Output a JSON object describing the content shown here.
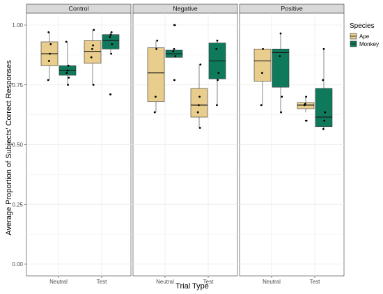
{
  "chart_data": {
    "type": "box",
    "facets": [
      "Control",
      "Negative",
      "Positive"
    ],
    "categories": [
      "Neutral",
      "Test"
    ],
    "xlabel": "Trial Type",
    "ylabel": "Average Proportion of Subjects' Correct Responses",
    "ylim": [
      0,
      1.05
    ],
    "yticks": [
      "0.00",
      "0.25",
      "0.50",
      "0.75",
      "1.00"
    ],
    "ytick_values": [
      0,
      0.25,
      0.5,
      0.75,
      1.0
    ],
    "legend": {
      "title": "Species",
      "position": "right"
    },
    "grid": true,
    "series": [
      {
        "name": "Ape",
        "color": "#e8cd8d"
      },
      {
        "name": "Monkey",
        "color": "#0f7a5b"
      }
    ],
    "boxes": [
      {
        "facet": "Control",
        "category": "Neutral",
        "series": "Ape",
        "q1": 0.83,
        "median": 0.88,
        "q3": 0.93,
        "whisker_low": 0.77,
        "whisker_high": 0.97,
        "points": [
          0.77,
          0.85,
          0.88,
          0.92,
          0.97
        ]
      },
      {
        "facet": "Control",
        "category": "Neutral",
        "series": "Monkey",
        "q1": 0.79,
        "median": 0.81,
        "q3": 0.83,
        "whisker_low": 0.75,
        "whisker_high": 0.93,
        "points": [
          0.75,
          0.78,
          0.8,
          0.81,
          0.83,
          0.93
        ]
      },
      {
        "facet": "Control",
        "category": "Test",
        "series": "Ape",
        "q1": 0.84,
        "median": 0.89,
        "q3": 0.935,
        "whisker_low": 0.75,
        "whisker_high": 0.98,
        "points": [
          0.75,
          0.865,
          0.9,
          0.915,
          0.98
        ]
      },
      {
        "facet": "Control",
        "category": "Test",
        "series": "Monkey",
        "q1": 0.9,
        "median": 0.935,
        "q3": 0.96,
        "whisker_low": 0.88,
        "whisker_high": 0.97,
        "outliers": [
          0.71
        ],
        "points": [
          0.71,
          0.88,
          0.92,
          0.95,
          0.96,
          0.97
        ]
      },
      {
        "facet": "Negative",
        "category": "Neutral",
        "series": "Ape",
        "q1": 0.68,
        "median": 0.8,
        "q3": 0.905,
        "whisker_low": 0.635,
        "whisker_high": 0.935,
        "points": [
          0.635,
          0.7,
          0.9,
          0.935
        ]
      },
      {
        "facet": "Negative",
        "category": "Neutral",
        "series": "Monkey",
        "q1": 0.865,
        "median": 0.88,
        "q3": 0.895,
        "whisker_low": 0.865,
        "whisker_high": 0.895,
        "outliers": [
          0.77,
          1.0
        ],
        "points": [
          0.77,
          0.87,
          0.89,
          0.9,
          1.0
        ]
      },
      {
        "facet": "Negative",
        "category": "Test",
        "series": "Ape",
        "q1": 0.615,
        "median": 0.665,
        "q3": 0.735,
        "whisker_low": 0.57,
        "whisker_high": 0.835,
        "points": [
          0.57,
          0.635,
          0.665,
          0.7,
          0.835
        ]
      },
      {
        "facet": "Negative",
        "category": "Test",
        "series": "Monkey",
        "q1": 0.775,
        "median": 0.85,
        "q3": 0.925,
        "whisker_low": 0.665,
        "whisker_high": 0.935,
        "points": [
          0.665,
          0.77,
          0.8,
          0.9,
          0.935
        ]
      },
      {
        "facet": "Positive",
        "category": "Neutral",
        "series": "Ape",
        "q1": 0.765,
        "median": 0.85,
        "q3": 0.9,
        "whisker_low": 0.665,
        "whisker_high": 0.9,
        "points": [
          0.665,
          0.8,
          0.9
        ]
      },
      {
        "facet": "Positive",
        "category": "Neutral",
        "series": "Monkey",
        "q1": 0.74,
        "median": 0.885,
        "q3": 0.9,
        "whisker_low": 0.635,
        "whisker_high": 0.965,
        "points": [
          0.635,
          0.7,
          0.87,
          0.965
        ]
      },
      {
        "facet": "Positive",
        "category": "Test",
        "series": "Ape",
        "q1": 0.65,
        "median": 0.665,
        "q3": 0.675,
        "whisker_low": 0.635,
        "whisker_high": 0.7,
        "outliers": [
          0.6
        ],
        "points": [
          0.6,
          0.665,
          0.67,
          0.7
        ]
      },
      {
        "facet": "Positive",
        "category": "Test",
        "series": "Monkey",
        "q1": 0.575,
        "median": 0.615,
        "q3": 0.735,
        "whisker_low": 0.565,
        "whisker_high": 0.9,
        "points": [
          0.565,
          0.6,
          0.635,
          0.77,
          0.9
        ]
      }
    ]
  }
}
